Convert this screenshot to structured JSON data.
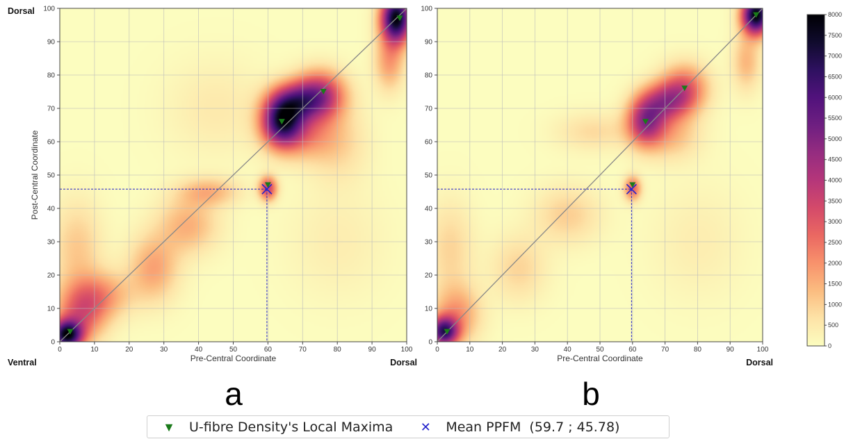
{
  "figure": {
    "colorbar": {
      "min": 0,
      "max": 8000,
      "ticks": [
        "0",
        "500",
        "1000",
        "1500",
        "2000",
        "2500",
        "3000",
        "3500",
        "4000",
        "4500",
        "5000",
        "5500",
        "6000",
        "6500",
        "7000",
        "7500",
        "8000"
      ],
      "colors": [
        "#fcfdbf",
        "#fde3a7",
        "#fbbc80",
        "#f8926c",
        "#ea6862",
        "#d44a6a",
        "#b5367a",
        "#952c80",
        "#6e1f81",
        "#51127c",
        "#2e1160",
        "#100b2d",
        "#000004"
      ]
    },
    "legend": {
      "items": [
        {
          "label": "U-fibre Density's Local Maxima",
          "marker": "▼",
          "color": "#1a7a1a"
        },
        {
          "label": "Mean PPFM  (59.7 ; 45.78)",
          "marker": "✕",
          "color": "#2222cc"
        }
      ]
    },
    "colors": {
      "maxima": "#1a7a1a",
      "mean": "#2222cc",
      "diagonal": "#888888",
      "grid": "#bbbbbb"
    }
  },
  "chart_data": [
    {
      "type": "heatmap",
      "panel_letter": "a",
      "xlabel": "Pre-Central Coordinate",
      "ylabel": "Post-Central Coordinate",
      "xlim": [
        0,
        100
      ],
      "ylim": [
        0,
        100
      ],
      "x_ticks": [
        "0",
        "10",
        "20",
        "30",
        "40",
        "50",
        "60",
        "70",
        "80",
        "90",
        "100"
      ],
      "y_ticks": [
        "0",
        "10",
        "20",
        "30",
        "40",
        "50",
        "60",
        "70",
        "80",
        "90",
        "100"
      ],
      "corner_labels": {
        "top_left": "Dorsal",
        "bottom_left": "Ventral",
        "bottom_right": "Dorsal"
      },
      "grid": true,
      "diagonal": true,
      "local_maxima": [
        {
          "x": 3,
          "y": 3
        },
        {
          "x": 60,
          "y": 47
        },
        {
          "x": 64,
          "y": 66
        },
        {
          "x": 76,
          "y": 75
        },
        {
          "x": 98,
          "y": 97
        }
      ],
      "mean_ppfm": {
        "x": 59.7,
        "y": 45.78
      },
      "density_peaks": [
        {
          "x": 97,
          "y": 97,
          "value": 7800,
          "sx": 3,
          "sy": 5
        },
        {
          "x": 95,
          "y": 84,
          "value": 1800,
          "sx": 3,
          "sy": 6
        },
        {
          "x": 2,
          "y": 2,
          "value": 7000,
          "sx": 3,
          "sy": 3
        },
        {
          "x": 6,
          "y": 8,
          "value": 2600,
          "sx": 5,
          "sy": 6
        },
        {
          "x": 12,
          "y": 14,
          "value": 1700,
          "sx": 6,
          "sy": 5
        },
        {
          "x": 5,
          "y": 28,
          "value": 1100,
          "sx": 5,
          "sy": 10
        },
        {
          "x": 27,
          "y": 22,
          "value": 1700,
          "sx": 5,
          "sy": 7
        },
        {
          "x": 37,
          "y": 35,
          "value": 1500,
          "sx": 6,
          "sy": 6
        },
        {
          "x": 43,
          "y": 45,
          "value": 1400,
          "sx": 6,
          "sy": 3
        },
        {
          "x": 60,
          "y": 46,
          "value": 3500,
          "sx": 1.8,
          "sy": 2.5
        },
        {
          "x": 64,
          "y": 66,
          "value": 6200,
          "sx": 4,
          "sy": 5
        },
        {
          "x": 68,
          "y": 72,
          "value": 3800,
          "sx": 5,
          "sy": 4
        },
        {
          "x": 75,
          "y": 74,
          "value": 4000,
          "sx": 5,
          "sy": 5
        },
        {
          "x": 70,
          "y": 62,
          "value": 1800,
          "sx": 6,
          "sy": 5
        },
        {
          "x": 80,
          "y": 60,
          "value": 900,
          "sx": 6,
          "sy": 8
        },
        {
          "x": 45,
          "y": 70,
          "value": 500,
          "sx": 10,
          "sy": 10
        },
        {
          "x": 80,
          "y": 30,
          "value": 400,
          "sx": 10,
          "sy": 12
        }
      ]
    },
    {
      "type": "heatmap",
      "panel_letter": "b",
      "xlabel": "Pre-Central Coordinate",
      "ylabel": "",
      "xlim": [
        0,
        100
      ],
      "ylim": [
        0,
        100
      ],
      "x_ticks": [
        "0",
        "10",
        "20",
        "30",
        "40",
        "50",
        "60",
        "70",
        "80",
        "90",
        "100"
      ],
      "y_ticks": [
        "0",
        "10",
        "20",
        "30",
        "40",
        "50",
        "60",
        "70",
        "80",
        "90",
        "100"
      ],
      "corner_labels": {
        "top_left": "",
        "bottom_left": "",
        "bottom_right": "Dorsal"
      },
      "grid": true,
      "diagonal": true,
      "local_maxima": [
        {
          "x": 3,
          "y": 3
        },
        {
          "x": 60,
          "y": 47
        },
        {
          "x": 64,
          "y": 66
        },
        {
          "x": 76,
          "y": 76
        },
        {
          "x": 98,
          "y": 98
        }
      ],
      "mean_ppfm": {
        "x": 59.7,
        "y": 45.78
      },
      "density_peaks": [
        {
          "x": 98,
          "y": 98,
          "value": 7900,
          "sx": 3,
          "sy": 4
        },
        {
          "x": 95,
          "y": 84,
          "value": 1400,
          "sx": 3,
          "sy": 6
        },
        {
          "x": 2,
          "y": 3,
          "value": 6000,
          "sx": 3,
          "sy": 3
        },
        {
          "x": 6,
          "y": 8,
          "value": 1900,
          "sx": 5,
          "sy": 6
        },
        {
          "x": 4,
          "y": 28,
          "value": 900,
          "sx": 5,
          "sy": 10
        },
        {
          "x": 25,
          "y": 22,
          "value": 900,
          "sx": 6,
          "sy": 7
        },
        {
          "x": 40,
          "y": 38,
          "value": 1000,
          "sx": 7,
          "sy": 6
        },
        {
          "x": 60,
          "y": 46,
          "value": 2800,
          "sx": 1.8,
          "sy": 2.5
        },
        {
          "x": 64,
          "y": 66,
          "value": 4200,
          "sx": 4,
          "sy": 5
        },
        {
          "x": 70,
          "y": 72,
          "value": 3200,
          "sx": 5,
          "sy": 4
        },
        {
          "x": 76,
          "y": 76,
          "value": 2800,
          "sx": 5,
          "sy": 5
        },
        {
          "x": 72,
          "y": 62,
          "value": 1300,
          "sx": 6,
          "sy": 5
        },
        {
          "x": 48,
          "y": 63,
          "value": 800,
          "sx": 8,
          "sy": 4
        },
        {
          "x": 80,
          "y": 30,
          "value": 400,
          "sx": 10,
          "sy": 12
        }
      ]
    }
  ]
}
